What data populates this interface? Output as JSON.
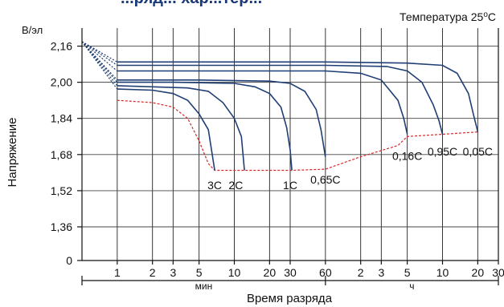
{
  "chart_data": {
    "type": "line",
    "title_partial": "...ряд... хар...тер...",
    "subtitle": "Температура 25",
    "subtitle_sup": "o",
    "subtitle_unit": "C",
    "ylabel": "Напряжение",
    "y_unit": "В/эл",
    "xlabel": "Время разряда",
    "ylim": [
      0,
      2.24
    ],
    "y_ticks": [
      "0",
      "1,36",
      "1,52",
      "1,68",
      "1,84",
      "2,00",
      "2,16"
    ],
    "y_tick_values": [
      0,
      1.36,
      1.52,
      1.68,
      1.84,
      2.0,
      2.16
    ],
    "x_tick_labels": [
      "1",
      "2",
      "3",
      "5",
      "10",
      "20",
      "30",
      "60",
      "2",
      "3",
      "5",
      "10",
      "20",
      "30"
    ],
    "x_tick_minutes": [
      1,
      2,
      3,
      5,
      10,
      20,
      30,
      60,
      120,
      180,
      300,
      600,
      1200,
      1800
    ],
    "x_group_labels": [
      {
        "label": "мин",
        "from_min": 0.5,
        "to_min": 60
      },
      {
        "label": "ч",
        "from_min": 60,
        "to_min": 1800
      }
    ],
    "series": [
      {
        "name": "3C",
        "label_at": {
          "x_min": 6.8,
          "y": 1.59
        },
        "points": [
          [
            0.5,
            2.18
          ],
          [
            1,
            1.97
          ],
          [
            2,
            1.965
          ],
          [
            3,
            1.95
          ],
          [
            4,
            1.92
          ],
          [
            5,
            1.86
          ],
          [
            6,
            1.79
          ],
          [
            6.8,
            1.61
          ]
        ]
      },
      {
        "name": "2C",
        "label_at": {
          "x_min": 10.3,
          "y": 1.59
        },
        "points": [
          [
            0.5,
            2.18
          ],
          [
            1,
            1.985
          ],
          [
            2,
            1.98
          ],
          [
            4,
            1.975
          ],
          [
            6,
            1.96
          ],
          [
            8,
            1.91
          ],
          [
            10,
            1.84
          ],
          [
            11.5,
            1.76
          ],
          [
            12.2,
            1.61
          ]
        ]
      },
      {
        "name": "1C",
        "label_at": {
          "x_min": 30,
          "y": 1.59
        },
        "points": [
          [
            0.5,
            2.18
          ],
          [
            1,
            2.0
          ],
          [
            3,
            2.0
          ],
          [
            10,
            1.995
          ],
          [
            15,
            1.98
          ],
          [
            20,
            1.95
          ],
          [
            25,
            1.89
          ],
          [
            28,
            1.8
          ],
          [
            30,
            1.7
          ],
          [
            31,
            1.61
          ]
        ]
      },
      {
        "name": "0,65C",
        "label_at": {
          "x_min": 60,
          "y": 1.615
        },
        "points": [
          [
            0.5,
            2.18
          ],
          [
            1,
            2.01
          ],
          [
            5,
            2.01
          ],
          [
            20,
            2.005
          ],
          [
            30,
            1.995
          ],
          [
            40,
            1.96
          ],
          [
            50,
            1.88
          ],
          [
            55,
            1.79
          ],
          [
            60,
            1.67
          ]
        ]
      },
      {
        "name": "0,16C",
        "label_at": {
          "x_min": 300,
          "y": 1.72
        },
        "points": [
          [
            0.5,
            2.18
          ],
          [
            1,
            2.05
          ],
          [
            10,
            2.05
          ],
          [
            60,
            2.05
          ],
          [
            120,
            2.04
          ],
          [
            180,
            2.01
          ],
          [
            250,
            1.92
          ],
          [
            280,
            1.84
          ],
          [
            300,
            1.77
          ]
        ]
      },
      {
        "name": "0,95C",
        "label_at": {
          "x_min": 600,
          "y": 1.74
        },
        "points": [
          [
            0.5,
            2.18
          ],
          [
            1,
            2.075
          ],
          [
            10,
            2.075
          ],
          [
            60,
            2.075
          ],
          [
            200,
            2.07
          ],
          [
            300,
            2.05
          ],
          [
            400,
            2.0
          ],
          [
            500,
            1.9
          ],
          [
            560,
            1.83
          ],
          [
            600,
            1.77
          ]
        ]
      },
      {
        "name": "0,05C",
        "label_at": {
          "x_min": 1200,
          "y": 1.74
        },
        "points": [
          [
            0.5,
            2.18
          ],
          [
            1,
            2.09
          ],
          [
            10,
            2.09
          ],
          [
            60,
            2.09
          ],
          [
            300,
            2.085
          ],
          [
            600,
            2.075
          ],
          [
            800,
            2.04
          ],
          [
            1000,
            1.95
          ],
          [
            1100,
            1.86
          ],
          [
            1200,
            1.78
          ]
        ]
      }
    ],
    "cutoff_line": [
      [
        1,
        1.92
      ],
      [
        2,
        1.91
      ],
      [
        3,
        1.89
      ],
      [
        4,
        1.84
      ],
      [
        5,
        1.74
      ],
      [
        6,
        1.64
      ],
      [
        6.8,
        1.61
      ],
      [
        10,
        1.61
      ],
      [
        20,
        1.61
      ],
      [
        31,
        1.61
      ],
      [
        60,
        1.615
      ],
      [
        120,
        1.67
      ],
      [
        250,
        1.72
      ],
      [
        300,
        1.76
      ],
      [
        600,
        1.77
      ],
      [
        1200,
        1.78
      ]
    ],
    "grid": true,
    "legend": "none"
  }
}
